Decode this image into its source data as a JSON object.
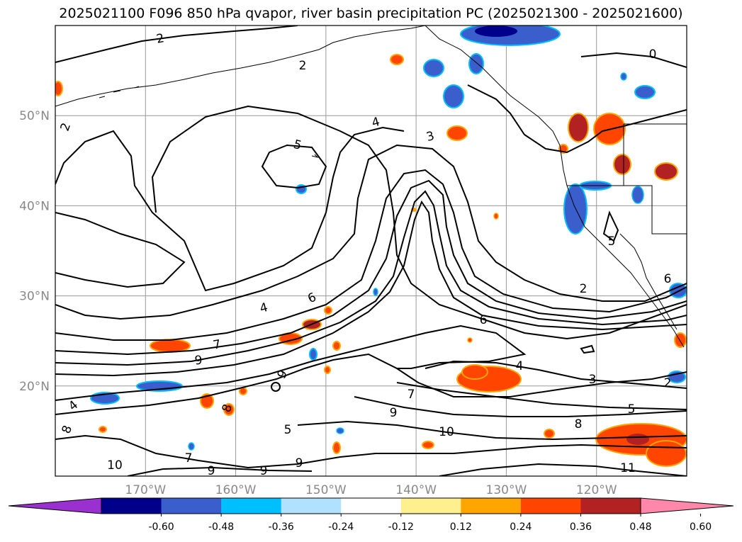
{
  "title": "2025021100 F096 850 hPa qvapor, river basin precipitation PC (2025021300 - 2025021600)",
  "axes": {
    "lon_labels": [
      "170°W",
      "160°W",
      "150°W",
      "140°W",
      "130°W",
      "120°W"
    ],
    "lat_labels": [
      "50°N",
      "40°N",
      "30°N",
      "20°N"
    ],
    "lon_range": [
      -180,
      -110
    ],
    "lat_range": [
      10,
      60
    ],
    "grid": true
  },
  "colorbar": {
    "ticks": [
      "-0.60",
      "-0.48",
      "-0.36",
      "-0.24",
      "-0.12",
      "0.12",
      "0.24",
      "0.36",
      "0.48",
      "0.60"
    ],
    "colors": [
      "#9b30d0",
      "#00008b",
      "#3a5fcd",
      "#00bfff",
      "#b0e2ff",
      "#ffffff",
      "#fff08f",
      "#ffa500",
      "#ff4500",
      "#b22222",
      "#ff88aa"
    ],
    "extend": "both"
  },
  "contour_labels": [
    "2",
    "2",
    "2",
    "0",
    "4",
    "3",
    "5",
    "5",
    "2",
    "6",
    "6",
    "4",
    "6",
    "7",
    "9",
    "9",
    "7",
    "4",
    "3",
    "2",
    "5",
    "8",
    "9",
    "10",
    "10",
    "7",
    "9",
    "9",
    "9",
    "11",
    "8",
    "8",
    "5",
    "4"
  ]
}
